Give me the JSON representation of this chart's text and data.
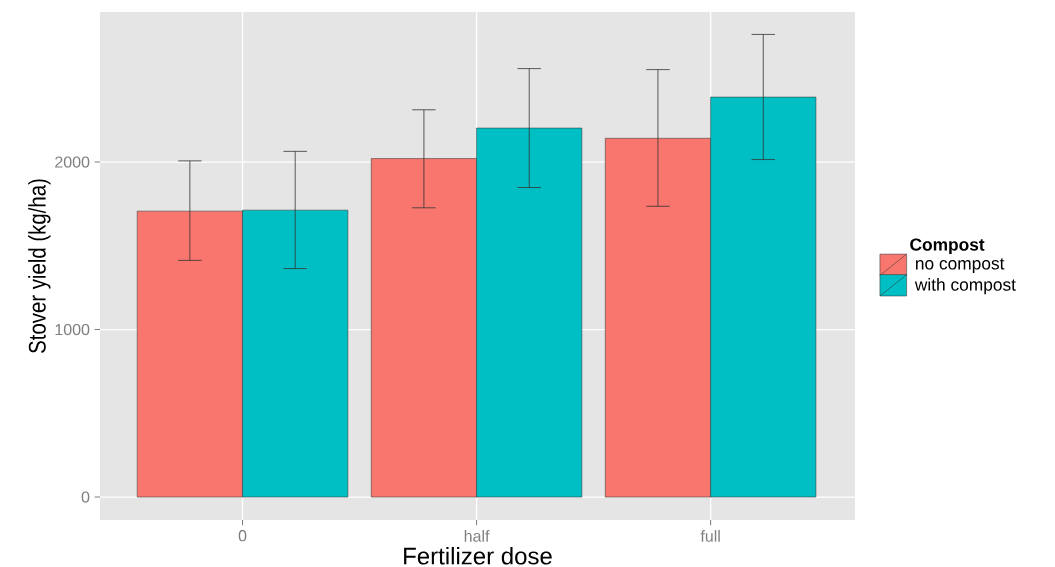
{
  "chart_data": {
    "type": "bar",
    "xlabel": "Fertilizer dose",
    "ylabel": "Stover yield (kg/ha)",
    "legend_title": "Compost",
    "categories": [
      "0",
      "half",
      "full"
    ],
    "series": [
      {
        "name": "no compost",
        "color": "#f8766d",
        "values": [
          1707,
          2021,
          2142
        ],
        "errors": [
          [
            1413,
            2007
          ],
          [
            1727,
            2312
          ],
          [
            1736,
            2552
          ]
        ]
      },
      {
        "name": "with compost",
        "color": "#00bfc4",
        "values": [
          1713,
          2203,
          2388
        ],
        "errors": [
          [
            1364,
            2064
          ],
          [
            1848,
            2558
          ],
          [
            2015,
            2762
          ]
        ]
      }
    ],
    "ylim": [
      -137,
      2896
    ],
    "yticks": [
      0,
      1000,
      2000
    ],
    "grid": true,
    "legend": "right"
  }
}
